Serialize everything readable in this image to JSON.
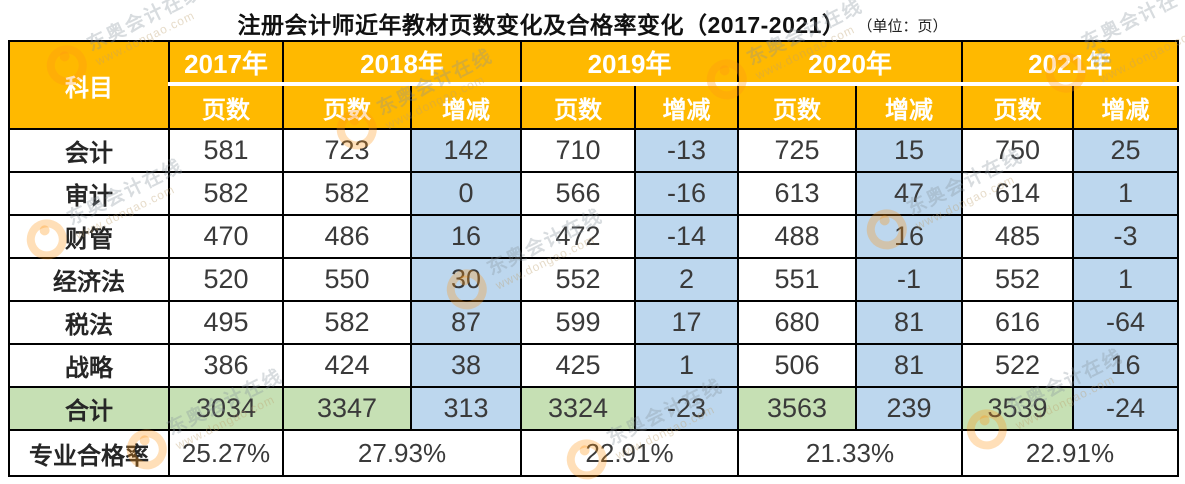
{
  "title": "注册会计师近年教材页数变化及合格率变化（2017-2021）",
  "unit_note": "（单位：页）",
  "chart_data": {
    "type": "table",
    "title": "注册会计师近年教材页数变化及合格率变化（2017-2021）",
    "unit": "页",
    "subject_header": "科目",
    "year_groups": [
      {
        "label": "2017年",
        "sub": [
          "页数"
        ]
      },
      {
        "label": "2018年",
        "sub": [
          "页数",
          "增减"
        ]
      },
      {
        "label": "2019年",
        "sub": [
          "页数",
          "增减"
        ]
      },
      {
        "label": "2020年",
        "sub": [
          "页数",
          "增减"
        ]
      },
      {
        "label": "2021年",
        "sub": [
          "页数",
          "增减"
        ]
      }
    ],
    "value_columns": [
      "2017页数",
      "2018页数",
      "2018增减",
      "2019页数",
      "2019增减",
      "2020页数",
      "2020增减",
      "2021页数",
      "2021增减"
    ],
    "rows": [
      {
        "subject": "会计",
        "values": [
          581,
          723,
          142,
          710,
          -13,
          725,
          15,
          750,
          25
        ]
      },
      {
        "subject": "审计",
        "values": [
          582,
          582,
          0,
          566,
          -16,
          613,
          47,
          614,
          1
        ]
      },
      {
        "subject": "财管",
        "values": [
          470,
          486,
          16,
          472,
          -14,
          488,
          16,
          485,
          -3
        ]
      },
      {
        "subject": "经济法",
        "values": [
          520,
          550,
          30,
          552,
          2,
          551,
          -1,
          552,
          1
        ]
      },
      {
        "subject": "税法",
        "values": [
          495,
          582,
          87,
          599,
          17,
          680,
          81,
          616,
          -64
        ]
      },
      {
        "subject": "战略",
        "values": [
          386,
          424,
          38,
          425,
          1,
          506,
          81,
          522,
          16
        ]
      }
    ],
    "total_row": {
      "subject": "合计",
      "values": [
        3034,
        3347,
        313,
        3324,
        -23,
        3563,
        239,
        3539,
        -24
      ]
    },
    "pass_rate_row": {
      "subject": "专业合格率",
      "values": [
        "25.27%",
        "27.93%",
        "22.91%",
        "21.33%",
        "22.91%"
      ]
    }
  },
  "colors": {
    "header_bg": "#FFB900",
    "header_text": "#FFFFFF",
    "change_cell_bg": "#BDD7EE",
    "total_cell_bg": "#C6E0B4",
    "body_text": "#3A3A3A",
    "border": "#000000"
  },
  "watermark": {
    "brand": "东奥会计在线",
    "url": "www.dongao.com"
  }
}
